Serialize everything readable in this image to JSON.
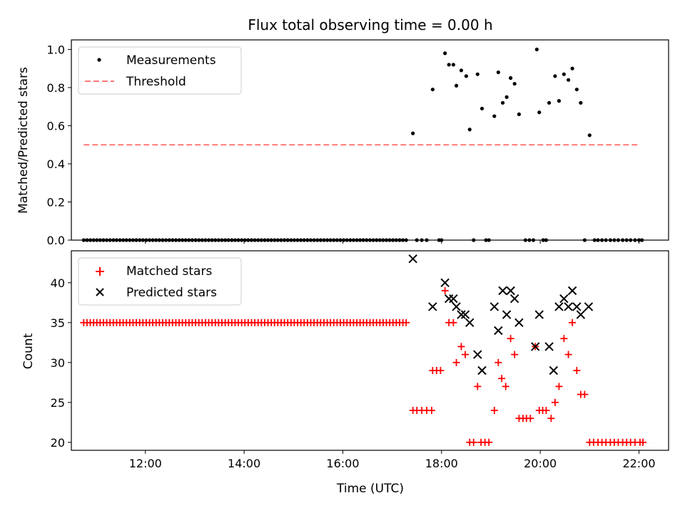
{
  "chart_data": [
    {
      "type": "scatter",
      "title": "Flux total observing time = 0.00 h",
      "ylabel": "Matched/Predicted stars",
      "xlabel": "",
      "xlim": [
        10.5,
        22.6
      ],
      "ylim": [
        0,
        1.05
      ],
      "yticks": [
        0.0,
        0.2,
        0.4,
        0.6,
        0.8,
        1.0
      ],
      "ytick_labels": [
        "0.0",
        "0.2",
        "0.4",
        "0.6",
        "0.8",
        "1.0"
      ],
      "legend": {
        "placement": "top-left",
        "entries": [
          "Measurements",
          "Threshold"
        ]
      },
      "series": [
        {
          "name": "Measurements",
          "kind": "points",
          "color": "#000000",
          "x_range": [
            10.75,
            17.35
          ],
          "x_step": 0.066667,
          "zero_value": 0,
          "points": [
            [
              17.42,
              0.56
            ],
            [
              17.5,
              0.0
            ],
            [
              17.6,
              0.0
            ],
            [
              17.7,
              0.0
            ],
            [
              17.82,
              0.79
            ],
            [
              17.95,
              0.0
            ],
            [
              18.0,
              0.0
            ],
            [
              18.07,
              0.98
            ],
            [
              18.15,
              0.92
            ],
            [
              18.24,
              0.92
            ],
            [
              18.3,
              0.81
            ],
            [
              18.4,
              0.89
            ],
            [
              18.5,
              0.86
            ],
            [
              18.57,
              0.58
            ],
            [
              18.65,
              0.0
            ],
            [
              18.73,
              0.87
            ],
            [
              18.82,
              0.69
            ],
            [
              18.9,
              0.0
            ],
            [
              18.96,
              0.0
            ],
            [
              19.07,
              0.65
            ],
            [
              19.15,
              0.88
            ],
            [
              19.24,
              0.72
            ],
            [
              19.32,
              0.75
            ],
            [
              19.4,
              0.85
            ],
            [
              19.48,
              0.82
            ],
            [
              19.57,
              0.66
            ],
            [
              19.7,
              0.0
            ],
            [
              19.78,
              0.0
            ],
            [
              19.86,
              0.0
            ],
            [
              19.93,
              1.0
            ],
            [
              19.98,
              0.67
            ],
            [
              20.06,
              0.0
            ],
            [
              20.12,
              0.0
            ],
            [
              20.18,
              0.72
            ],
            [
              20.3,
              0.86
            ],
            [
              20.38,
              0.73
            ],
            [
              20.48,
              0.87
            ],
            [
              20.57,
              0.84
            ],
            [
              20.65,
              0.9
            ],
            [
              20.74,
              0.79
            ],
            [
              20.82,
              0.72
            ],
            [
              20.9,
              0.0
            ],
            [
              21.0,
              0.55
            ],
            [
              21.1,
              0.0
            ],
            [
              21.17,
              0.0
            ],
            [
              21.25,
              0.0
            ],
            [
              21.33,
              0.0
            ],
            [
              21.42,
              0.0
            ],
            [
              21.5,
              0.0
            ],
            [
              21.58,
              0.0
            ],
            [
              21.67,
              0.0
            ],
            [
              21.75,
              0.0
            ],
            [
              21.83,
              0.0
            ],
            [
              21.92,
              0.0
            ],
            [
              22.0,
              0.0
            ],
            [
              22.06,
              0.0
            ]
          ]
        },
        {
          "name": "Threshold",
          "kind": "dashed-line",
          "color": "#ff7777",
          "x": [
            10.75,
            22.0
          ],
          "y": [
            0.5,
            0.5
          ]
        }
      ]
    },
    {
      "type": "scatter",
      "title": "",
      "ylabel": "Count",
      "xlabel": "Time (UTC)",
      "xlim": [
        10.5,
        22.6
      ],
      "ylim": [
        19,
        44
      ],
      "yticks": [
        20,
        25,
        30,
        35,
        40
      ],
      "ytick_labels": [
        "20",
        "25",
        "30",
        "35",
        "40"
      ],
      "xticks": [
        12,
        14,
        16,
        18,
        20,
        22
      ],
      "xtick_labels": [
        "12:00",
        "14:00",
        "16:00",
        "18:00",
        "20:00",
        "22:00"
      ],
      "legend": {
        "placement": "top-left",
        "entries": [
          "Matched stars",
          "Predicted stars"
        ]
      },
      "series": [
        {
          "name": "Matched stars",
          "marker": "plus",
          "color": "#ff0000",
          "x_range": [
            10.75,
            17.35
          ],
          "x_step": 0.066667,
          "constant_value": 35,
          "points": [
            [
              17.42,
              24
            ],
            [
              17.5,
              24
            ],
            [
              17.6,
              24
            ],
            [
              17.7,
              24
            ],
            [
              17.8,
              24
            ],
            [
              17.82,
              29
            ],
            [
              17.9,
              29
            ],
            [
              17.98,
              29
            ],
            [
              18.07,
              39
            ],
            [
              18.15,
              35
            ],
            [
              18.24,
              35
            ],
            [
              18.3,
              30
            ],
            [
              18.4,
              32
            ],
            [
              18.48,
              31
            ],
            [
              18.57,
              20
            ],
            [
              18.65,
              20
            ],
            [
              18.73,
              27
            ],
            [
              18.8,
              20
            ],
            [
              18.88,
              20
            ],
            [
              18.96,
              20
            ],
            [
              19.07,
              24
            ],
            [
              19.15,
              30
            ],
            [
              19.22,
              28
            ],
            [
              19.3,
              27
            ],
            [
              19.4,
              33
            ],
            [
              19.48,
              31
            ],
            [
              19.57,
              23
            ],
            [
              19.65,
              23
            ],
            [
              19.72,
              23
            ],
            [
              19.8,
              23
            ],
            [
              19.9,
              32
            ],
            [
              19.98,
              24
            ],
            [
              20.05,
              24
            ],
            [
              20.12,
              24
            ],
            [
              20.22,
              23
            ],
            [
              20.3,
              25
            ],
            [
              20.38,
              27
            ],
            [
              20.48,
              33
            ],
            [
              20.57,
              31
            ],
            [
              20.65,
              35
            ],
            [
              20.74,
              29
            ],
            [
              20.82,
              26
            ],
            [
              20.9,
              26
            ],
            [
              21.0,
              20
            ],
            [
              21.08,
              20
            ],
            [
              21.17,
              20
            ],
            [
              21.25,
              20
            ],
            [
              21.33,
              20
            ],
            [
              21.42,
              20
            ],
            [
              21.5,
              20
            ],
            [
              21.58,
              20
            ],
            [
              21.67,
              20
            ],
            [
              21.75,
              20
            ],
            [
              21.83,
              20
            ],
            [
              21.92,
              20
            ],
            [
              22.02,
              20
            ],
            [
              22.08,
              20
            ]
          ]
        },
        {
          "name": "Predicted stars",
          "marker": "x",
          "color": "#000000",
          "points": [
            [
              17.42,
              43
            ],
            [
              17.82,
              37
            ],
            [
              18.07,
              40
            ],
            [
              18.15,
              38
            ],
            [
              18.24,
              38
            ],
            [
              18.3,
              37
            ],
            [
              18.4,
              36
            ],
            [
              18.48,
              36
            ],
            [
              18.57,
              35
            ],
            [
              18.73,
              31
            ],
            [
              18.82,
              29
            ],
            [
              19.07,
              37
            ],
            [
              19.15,
              34
            ],
            [
              19.24,
              39
            ],
            [
              19.32,
              36
            ],
            [
              19.4,
              39
            ],
            [
              19.48,
              38
            ],
            [
              19.57,
              35
            ],
            [
              19.9,
              32
            ],
            [
              19.98,
              36
            ],
            [
              20.18,
              32
            ],
            [
              20.27,
              29
            ],
            [
              20.38,
              37
            ],
            [
              20.48,
              38
            ],
            [
              20.57,
              37
            ],
            [
              20.65,
              39
            ],
            [
              20.74,
              37
            ],
            [
              20.82,
              36
            ],
            [
              20.98,
              37
            ]
          ]
        }
      ]
    }
  ]
}
